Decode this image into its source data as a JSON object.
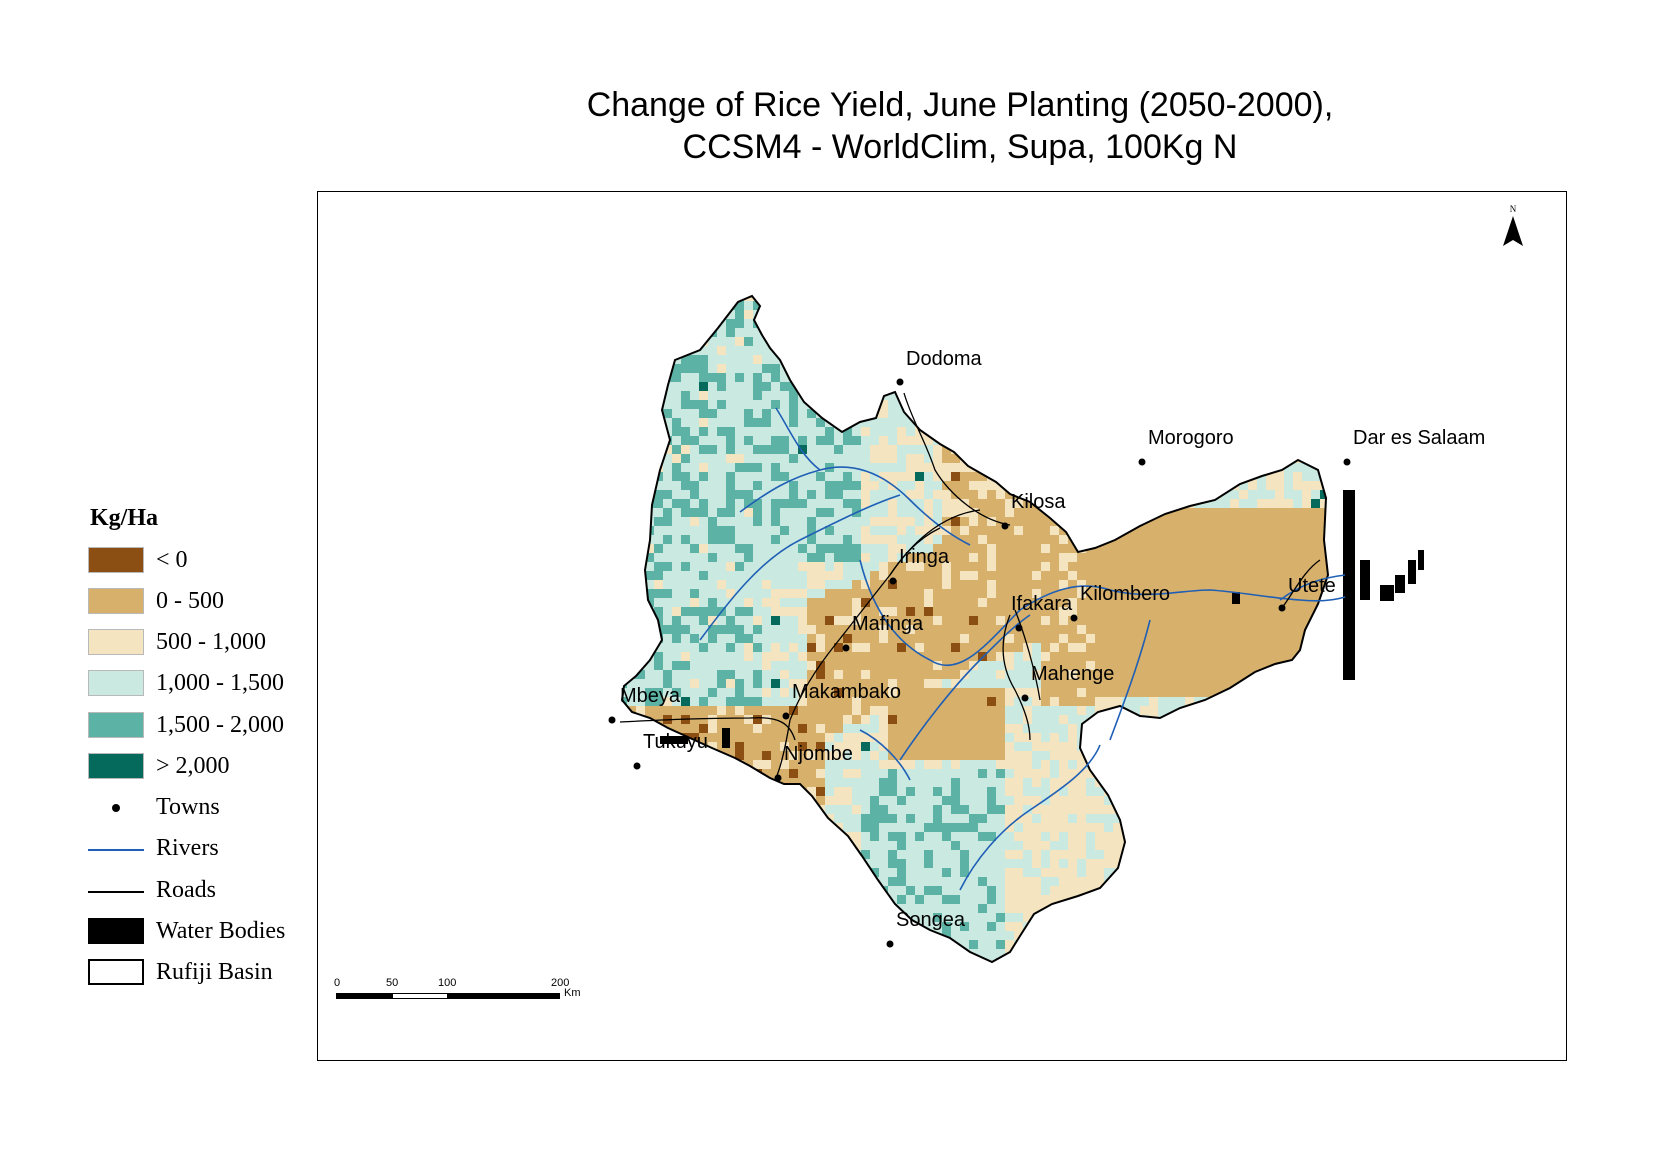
{
  "title": {
    "line1": "Change of Rice Yield, June Planting (2050-2000),",
    "line2": "CCSM4 - WorldClim, Supa, 100Kg N"
  },
  "north_arrow": {
    "label": "N"
  },
  "legend": {
    "title": "Kg/Ha",
    "classes": [
      {
        "label": "< 0",
        "color": "#8b4f14"
      },
      {
        "label": "0 - 500",
        "color": "#d7b06c"
      },
      {
        "label": "500 - 1,000",
        "color": "#f4e4c0"
      },
      {
        "label": "1,000 - 1,500",
        "color": "#c9e9e1"
      },
      {
        "label": "1,500 - 2,000",
        "color": "#5cb2a5"
      },
      {
        "label": "> 2,000",
        "color": "#05695c"
      }
    ],
    "towns_label": "Towns",
    "rivers_label": "Rivers",
    "roads_label": "Roads",
    "water_bodies_label": "Water Bodies",
    "basin_label": "Rufiji Basin",
    "river_color": "#1f5fb5"
  },
  "towns": [
    "Dodoma",
    "Morogoro",
    "Dar es Salaam",
    "Kilosa",
    "Iringa",
    "Kilombero",
    "Ifakara",
    "Utete",
    "Mafinga",
    "Mahenge",
    "Mbeya",
    "Makambako",
    "Tukuyu",
    "Njombe",
    "Songea"
  ],
  "scale_bar": {
    "ticks": [
      "0",
      "50",
      "100",
      "200"
    ],
    "unit": "Km"
  }
}
